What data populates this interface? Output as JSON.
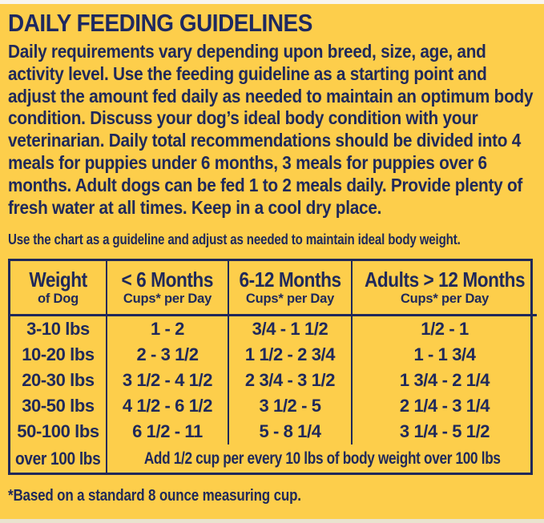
{
  "page": {
    "title": "DAILY FEEDING GUIDELINES",
    "intro": "Daily requirements vary depending upon breed, size, age, and activity level. Use the feeding guideline as a starting point and adjust the amount fed daily as needed to maintain an optimum body condition. Discuss your dog’s ideal body condition with your veterinarian. Daily total recommendations should be divided into 4 meals for puppies under 6 months, 3 meals for puppies over 6 months. Adult dogs can be fed 1 to 2 meals daily. Provide plenty of fresh water at all times. Keep in a cool dry place.",
    "chart_note": "Use the chart as a guideline and adjust as needed to maintain ideal body weight.",
    "footnote": "*Based on a standard 8 ounce measuring cup."
  },
  "table": {
    "columns": [
      {
        "title": "Weight",
        "subtitle": "of Dog"
      },
      {
        "title": "< 6 Months",
        "subtitle": "Cups* per Day"
      },
      {
        "title": "6-12 Months",
        "subtitle": "Cups* per Day"
      },
      {
        "title": "Adults > 12 Months",
        "subtitle": "Cups* per Day"
      }
    ],
    "rows": [
      {
        "weight": "3-10 lbs",
        "under6": "1 - 2",
        "m6to12": "3/4 - 1 1/2",
        "adults": "1/2 - 1"
      },
      {
        "weight": "10-20 lbs",
        "under6": "2 - 3 1/2",
        "m6to12": "1 1/2 - 2 3/4",
        "adults": "1 - 1 3/4"
      },
      {
        "weight": "20-30 lbs",
        "under6": "3 1/2 - 4 1/2",
        "m6to12": "2 3/4 - 3 1/2",
        "adults": "1 3/4 - 2 1/4"
      },
      {
        "weight": "30-50 lbs",
        "under6": "4 1/2 - 6 1/2",
        "m6to12": "3 1/2 - 5",
        "adults": "2 1/4 - 3 1/4"
      },
      {
        "weight": "50-100 lbs",
        "under6": "6 1/2 - 11",
        "m6to12": "5 - 8 1/4",
        "adults": "3 1/4 - 5 1/2"
      }
    ],
    "over100": {
      "weight": "over 100 lbs",
      "note": "Add 1/2 cup per every 10 lbs of body weight over 100 lbs"
    }
  },
  "colors": {
    "background": "#fdce4b",
    "text_navy": "#20295a",
    "table_border": "#20295a",
    "top_strip": "#f8f5ee",
    "bottom_strip": "#e9e3cf"
  }
}
